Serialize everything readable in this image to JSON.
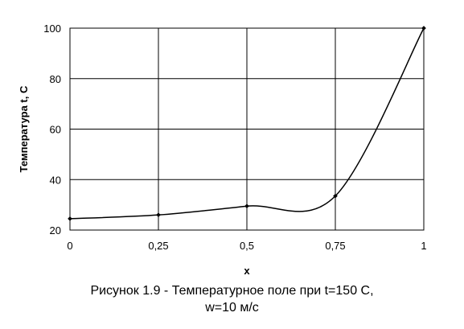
{
  "chart_data": {
    "type": "line",
    "xlabel": "x",
    "ylabel": "Температура t, C",
    "xlim": [
      0,
      1
    ],
    "ylim": [
      20,
      100
    ],
    "x_ticks": [
      "0",
      "0,25",
      "0,5",
      "0,75",
      "1"
    ],
    "y_ticks": [
      "20",
      "40",
      "60",
      "80",
      "100"
    ],
    "grid": true,
    "legend": "none",
    "series": [
      {
        "x": [
          0,
          0.25,
          0.5,
          0.75,
          1
        ],
        "y": [
          24.5,
          26,
          29.5,
          33.5,
          100
        ]
      }
    ],
    "line_color": "#000000"
  },
  "caption": {
    "line1": "Рисунок 1.9 - Температурное поле при t=150 С,",
    "line2": "w=10 м/с"
  }
}
